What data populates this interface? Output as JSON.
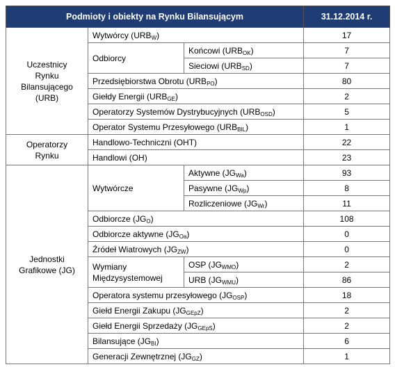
{
  "header": {
    "title": "Podmioty i obiekty na Rynku Bilansującym",
    "date": "31.12.2014 r."
  },
  "groups": [
    {
      "label": "Uczestnicy Rynku Bilansującego (URB)",
      "items": [
        {
          "label": {
            "text": "Wytwórcy (URB",
            "sub": "W",
            "end": ")"
          },
          "value": 17
        },
        {
          "label": "Odbiorcy",
          "items": [
            {
              "label": {
                "text": "Końcowi (URB",
                "sub": "OK",
                "end": ")"
              },
              "value": 7
            },
            {
              "label": {
                "text": "Sieciowi (URB",
                "sub": "SD",
                "end": ")"
              },
              "value": 7
            }
          ]
        },
        {
          "label": {
            "text": "Przedsiębiorstwa Obrotu (URB",
            "sub": "PO",
            "end": ")"
          },
          "value": 80
        },
        {
          "label": {
            "text": "Giełdy Energii (URB",
            "sub": "GE",
            "end": ")"
          },
          "value": 2
        },
        {
          "label": {
            "text": "Operatorzy Systemów Dystrybucyjnych (URB",
            "sub": "OSD",
            "end": ")"
          },
          "value": 5
        },
        {
          "label": {
            "text": "Operator Systemu Przesyłowego (URB",
            "sub": "BIL",
            "end": ")"
          },
          "value": 1
        }
      ]
    },
    {
      "label": "Operatorzy Rynku",
      "items": [
        {
          "label": "Handlowo-Techniczni (OHT)",
          "value": 22
        },
        {
          "label": "Handlowi (OH)",
          "value": 23
        }
      ]
    },
    {
      "label": "Jednostki Grafikowe (JG)",
      "items": [
        {
          "label": "Wytwórcze",
          "items": [
            {
              "label": {
                "text": "Aktywne (JG",
                "sub": "Wa",
                "end": ")"
              },
              "value": 93
            },
            {
              "label": {
                "text": "Pasywne (JG",
                "sub": "Wp",
                "end": ")"
              },
              "value": 8
            },
            {
              "label": {
                "text": "Rozliczeniowe (JG",
                "sub": "Wr",
                "end": ")"
              },
              "value": 11
            }
          ]
        },
        {
          "label": {
            "text": "Odbiorcze (JG",
            "sub": "O",
            "end": ")"
          },
          "value": 108
        },
        {
          "label": {
            "text": "Odbiorcze aktywne (JG",
            "sub": "Oa",
            "end": ")"
          },
          "value": 0
        },
        {
          "label": {
            "text": "Źródeł Wiatrowych (JG",
            "sub": "ZW",
            "end": ")"
          },
          "value": 0
        },
        {
          "label": "Wymiany Międzysystemowej",
          "items": [
            {
              "label": {
                "text": "OSP (JG",
                "sub": "WMO",
                "end": ")"
              },
              "value": 2
            },
            {
              "label": {
                "text": "URB (JG",
                "sub": "WMU",
                "end": ")"
              },
              "value": 86
            }
          ]
        },
        {
          "label": {
            "text": "Operatora systemu przesyłowego (JG",
            "sub": "OSP",
            "end": ")"
          },
          "value": 18
        },
        {
          "label": {
            "text": "Giełd Energii Zakupu (JG",
            "sub": "GEpZ",
            "end": ")"
          },
          "value": 2
        },
        {
          "label": {
            "text": "Giełd Energii Sprzedaży (JG",
            "sub": "GEpS",
            "end": ")"
          },
          "value": 2
        },
        {
          "label": {
            "text": "Bilansujące (JG",
            "sub": "BI",
            "end": ")"
          },
          "value": 6
        },
        {
          "label": {
            "text": "Generacji Zewnętrznej (JG",
            "sub": "GZ",
            "end": ")"
          },
          "value": 1
        }
      ]
    }
  ]
}
